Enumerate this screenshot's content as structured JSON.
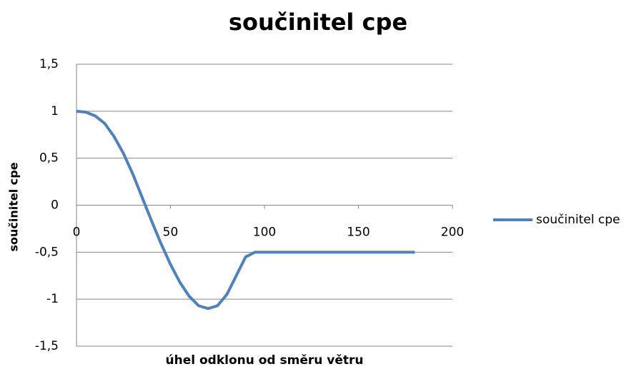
{
  "chart_data": {
    "type": "line",
    "title": "součinitel cpe",
    "x_label": "úhel odklonu  od směru větru",
    "y_label": "součinitel cpe",
    "x": [
      0,
      5,
      10,
      15,
      20,
      25,
      30,
      35,
      40,
      45,
      50,
      55,
      60,
      65,
      70,
      75,
      80,
      85,
      90,
      95,
      100,
      120,
      140,
      160,
      180
    ],
    "series": [
      {
        "name": "součinitel cpe",
        "color": "#4f81bd",
        "values": [
          1,
          0.99,
          0.95,
          0.87,
          0.73,
          0.55,
          0.33,
          0.08,
          -0.17,
          -0.41,
          -0.63,
          -0.82,
          -0.97,
          -1.07,
          -1.1,
          -1.07,
          -0.95,
          -0.75,
          -0.55,
          -0.5,
          -0.5,
          -0.5,
          -0.5,
          -0.5,
          -0.5
        ]
      }
    ],
    "xlim": [
      0,
      200
    ],
    "xticks": [
      0,
      50,
      100,
      150,
      200
    ],
    "ylim": [
      -1.5,
      1.5
    ],
    "yticks": [
      {
        "value": -1.5,
        "label": "-1,5"
      },
      -1,
      {
        "value": -0.5,
        "label": "-0,5"
      },
      0,
      {
        "value": 0.5,
        "label": "0,5"
      },
      1,
      {
        "value": 1.5,
        "label": "1,5"
      }
    ],
    "grid": true,
    "legend": "right"
  }
}
